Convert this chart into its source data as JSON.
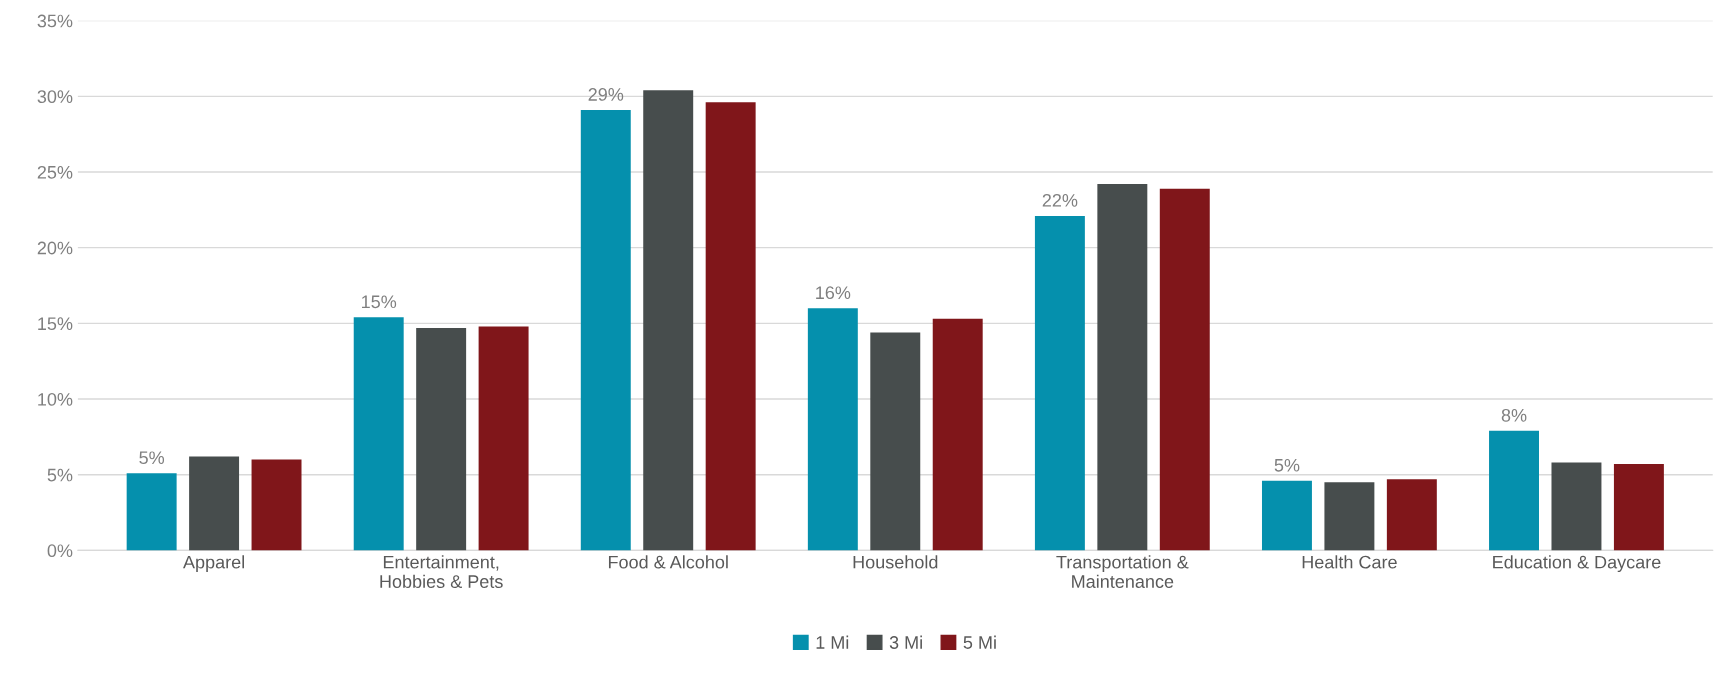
{
  "chart_data": {
    "type": "bar",
    "categories": [
      "Apparel",
      "Entertainment,\nHobbies & Pets",
      "Food & Alcohol",
      "Household",
      "Transportation &\nMaintenance",
      "Health Care",
      "Education & Daycare"
    ],
    "series": [
      {
        "name": "1 Mi",
        "color": "#0590ad",
        "values": [
          5.1,
          15.4,
          29.1,
          16.0,
          22.1,
          4.6,
          7.9
        ],
        "value_labels": [
          "5%",
          "15%",
          "29%",
          "16%",
          "22%",
          "5%",
          "8%"
        ]
      },
      {
        "name": "3 Mi",
        "color": "#474d4d",
        "values": [
          6.2,
          14.7,
          30.4,
          14.4,
          24.2,
          4.5,
          5.8
        ]
      },
      {
        "name": "5 Mi",
        "color": "#80161a",
        "values": [
          6.0,
          14.8,
          29.6,
          15.3,
          23.9,
          4.7,
          5.7
        ]
      }
    ],
    "ylim": [
      0,
      35
    ],
    "yticks": [
      {
        "value": 0,
        "label": "0%"
      },
      {
        "value": 5,
        "label": "5%"
      },
      {
        "value": 10,
        "label": "10%"
      },
      {
        "value": 15,
        "label": "15%"
      },
      {
        "value": 20,
        "label": "20%"
      },
      {
        "value": 25,
        "label": "25%"
      },
      {
        "value": 30,
        "label": "30%"
      },
      {
        "value": 35,
        "label": "35%"
      }
    ],
    "grid": "y",
    "legend": "bottom"
  }
}
